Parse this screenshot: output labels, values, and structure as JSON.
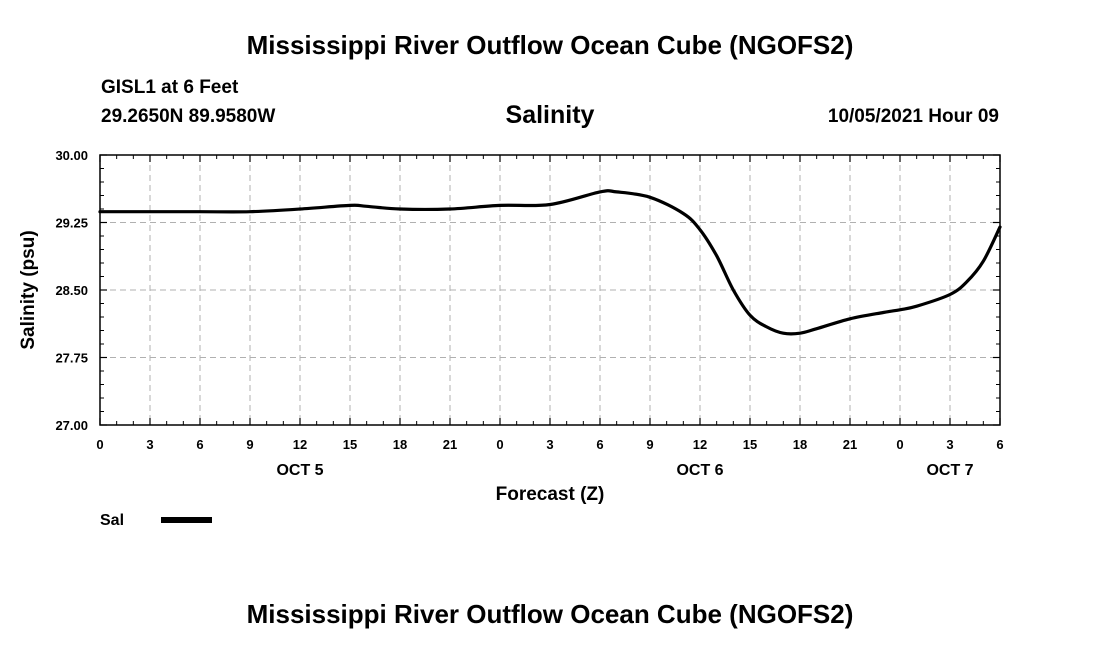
{
  "page": {
    "title_top": "Mississippi River Outflow Ocean Cube (NGOFS2)",
    "title_bottom": "Mississippi River Outflow Ocean Cube (NGOFS2)",
    "station": "GISL1 at 6 Feet",
    "coords": "29.2650N  89.9580W",
    "subtitle": "Salinity",
    "datetime": "10/05/2021 Hour 09"
  },
  "chart_data": {
    "type": "line",
    "title": "Salinity",
    "xlabel": "Forecast (Z)",
    "ylabel": "Salinity (psu)",
    "xlim": [
      0,
      54
    ],
    "ylim": [
      27.0,
      30.0
    ],
    "grid": true,
    "x_ticks": [
      0,
      3,
      6,
      9,
      12,
      15,
      18,
      21,
      24,
      27,
      30,
      33,
      36,
      39,
      42,
      45,
      48,
      51,
      54
    ],
    "x_tick_labels": [
      "0",
      "3",
      "6",
      "9",
      "12",
      "15",
      "18",
      "21",
      "0",
      "3",
      "6",
      "9",
      "12",
      "15",
      "18",
      "21",
      "0",
      "3",
      "6"
    ],
    "y_ticks": [
      27.0,
      27.75,
      28.5,
      29.25,
      30.0
    ],
    "y_tick_labels": [
      "27.00",
      "27.75",
      "28.50",
      "29.25",
      "30.00"
    ],
    "date_labels": [
      {
        "x": 12,
        "label": "OCT 5"
      },
      {
        "x": 36,
        "label": "OCT 6"
      },
      {
        "x": 51,
        "label": "OCT 7"
      }
    ],
    "legend": {
      "label": "Sal",
      "position": "bottom-left"
    },
    "series": [
      {
        "name": "Sal",
        "color": "#000000",
        "x": [
          0,
          3,
          6,
          9,
          12,
          15,
          16,
          18,
          21,
          24,
          27,
          30,
          31,
          33,
          35,
          36,
          37,
          38,
          39,
          40,
          41,
          42,
          43,
          45,
          47,
          48,
          49,
          51,
          52,
          53,
          54
        ],
        "y": [
          29.37,
          29.37,
          29.37,
          29.37,
          29.4,
          29.44,
          29.43,
          29.4,
          29.4,
          29.44,
          29.45,
          29.59,
          29.59,
          29.53,
          29.35,
          29.17,
          28.88,
          28.5,
          28.22,
          28.09,
          28.02,
          28.02,
          28.07,
          28.18,
          28.25,
          28.28,
          28.32,
          28.45,
          28.59,
          28.82,
          29.2
        ]
      }
    ]
  }
}
